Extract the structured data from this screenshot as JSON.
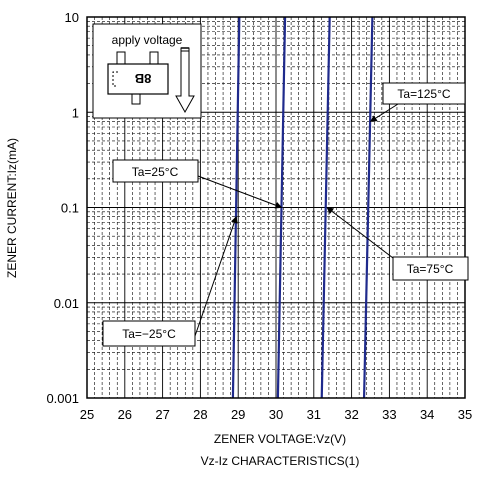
{
  "chart_data": {
    "type": "line",
    "xlabel": "ZENER VOLTAGE:Vz(V)",
    "ylabel": "ZENER CURRENT:Iz(mA)",
    "caption": "Vz-Iz CHARACTERISTICS(1)",
    "x_scale": "linear",
    "y_scale": "log",
    "xlim": [
      25,
      35
    ],
    "ylim": [
      0.001,
      10
    ],
    "x_ticks": [
      "25",
      "26",
      "27",
      "28",
      "29",
      "30",
      "31",
      "32",
      "33",
      "34",
      "35"
    ],
    "y_ticks": [
      "0.001",
      "0.01",
      "0.1",
      "1",
      "10"
    ],
    "grid": true,
    "series": [
      {
        "name": "Ta=−25°C",
        "color": "#1f2a8c",
        "points": [
          [
            28.86,
            0.001
          ],
          [
            29.03,
            10
          ]
        ]
      },
      {
        "name": "Ta=25°C",
        "color": "#1f2a8c",
        "points": [
          [
            30.05,
            0.001
          ],
          [
            30.24,
            10
          ]
        ]
      },
      {
        "name": "Ta=75°C",
        "color": "#1f2a8c",
        "points": [
          [
            31.21,
            0.001
          ],
          [
            31.42,
            10
          ]
        ]
      },
      {
        "name": "Ta=125°C",
        "color": "#1f2a8c",
        "points": [
          [
            32.33,
            0.001
          ],
          [
            32.55,
            10
          ]
        ]
      }
    ],
    "annotations": [
      {
        "text": "Ta=−25°C",
        "arrow_to": [
          28.95,
          0.08
        ]
      },
      {
        "text": "Ta=25°C",
        "arrow_to": [
          30.15,
          0.1
        ]
      },
      {
        "text": "Ta=75°C",
        "arrow_to": [
          31.35,
          0.1
        ]
      },
      {
        "text": "Ta=125°C",
        "arrow_to": [
          32.5,
          0.8
        ]
      }
    ],
    "inset": {
      "label": "apply voltage",
      "package_marking": "8B"
    }
  }
}
